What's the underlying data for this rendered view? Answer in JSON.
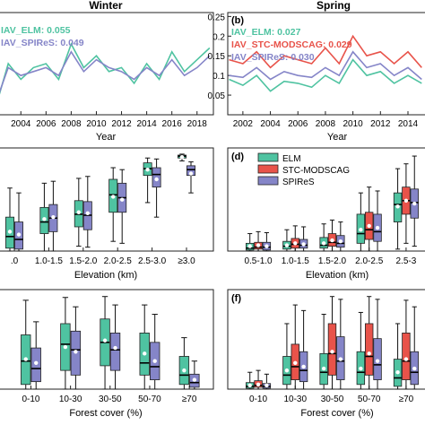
{
  "colors": {
    "ELM": "#4fc3a1",
    "STC-MODSCAG": "#e8534a",
    "SPIReS": "#8585c8",
    "frame": "#222222"
  },
  "chart_data": [
    {
      "id": "a",
      "type": "line",
      "title": "Winter",
      "panel_label": "",
      "xlabel": "Year",
      "x_ticks": [
        2004,
        2006,
        2008,
        2010,
        2012,
        2014,
        2016,
        2018
      ],
      "xlim": [
        2002.2,
        2019.3
      ],
      "ylim": [
        0,
        0.26
      ],
      "annotations": [
        {
          "text": "IAV_ELM: 0.055",
          "series": "ELM"
        },
        {
          "text": "IAV_SPIReS: 0.049",
          "series": "SPIReS"
        }
      ],
      "x": [
        2002,
        2003,
        2004,
        2005,
        2006,
        2007,
        2008,
        2009,
        2010,
        2011,
        2012,
        2013,
        2014,
        2015,
        2016,
        2017,
        2018,
        2019
      ],
      "series": [
        {
          "name": "ELM",
          "color_key": "ELM",
          "values": [
            0.02,
            0.13,
            0.09,
            0.12,
            0.13,
            0.09,
            0.18,
            0.12,
            0.15,
            0.11,
            0.12,
            0.08,
            0.13,
            0.09,
            0.16,
            0.11,
            0.14,
            0.17
          ]
        },
        {
          "name": "SPIReS",
          "color_key": "SPIReS",
          "values": [
            0.03,
            0.12,
            0.1,
            0.11,
            0.12,
            0.1,
            0.16,
            0.11,
            0.14,
            0.12,
            0.11,
            0.09,
            0.12,
            0.1,
            0.14,
            0.1,
            0.12,
            0.15
          ]
        }
      ]
    },
    {
      "id": "b",
      "type": "line",
      "title": "Spring",
      "panel_label": "(b)",
      "xlabel": "Year",
      "x_ticks": [
        2002,
        2004,
        2006,
        2008,
        2010,
        2012,
        2014
      ],
      "xlim": [
        2000.9,
        2015.5
      ],
      "ylim": [
        0,
        0.26
      ],
      "y_ticks": [
        0.05,
        0.1,
        0.15,
        0.2,
        0.25
      ],
      "annotations": [
        {
          "text": "IAV_ELM: 0.027",
          "series": "ELM"
        },
        {
          "text": "IAV_STC-MODSCAG: 0.029",
          "series": "STC-MODSCAG"
        },
        {
          "text": "IAV_SPIReS: 0.030",
          "series": "SPIReS"
        }
      ],
      "x": [
        2001,
        2002,
        2003,
        2004,
        2005,
        2006,
        2007,
        2008,
        2009,
        2010,
        2011,
        2012,
        2013,
        2014,
        2015
      ],
      "series": [
        {
          "name": "ELM",
          "color_key": "ELM",
          "values": [
            0.09,
            0.075,
            0.1,
            0.06,
            0.085,
            0.08,
            0.07,
            0.1,
            0.08,
            0.14,
            0.1,
            0.11,
            0.08,
            0.1,
            0.08
          ]
        },
        {
          "name": "STC-MODSCAG",
          "color_key": "STC-MODSCAG",
          "values": [
            0.14,
            0.13,
            0.16,
            0.12,
            0.15,
            0.14,
            0.13,
            0.17,
            0.13,
            0.2,
            0.15,
            0.16,
            0.13,
            0.16,
            0.12
          ]
        },
        {
          "name": "SPIReS",
          "color_key": "SPIReS",
          "values": [
            0.1,
            0.095,
            0.12,
            0.09,
            0.11,
            0.1,
            0.095,
            0.12,
            0.1,
            0.16,
            0.12,
            0.13,
            0.1,
            0.12,
            0.09
          ]
        }
      ]
    },
    {
      "id": "c",
      "type": "box",
      "panel_label": "",
      "xlabel": "Elevation (km)",
      "categories": [
        ".0",
        "1.0-1.5",
        "1.5-2.0",
        "2.0-2.5",
        "2.5-3.0",
        "≥3.0"
      ],
      "ylim": [
        0,
        1
      ],
      "series": [
        {
          "name": "ELM",
          "color_key": "ELM",
          "boxes": [
            {
              "wl": 0.0,
              "q1": 0.03,
              "med": 0.15,
              "q3": 0.35,
              "wh": 0.65,
              "mean": 0.2
            },
            {
              "wl": 0.0,
              "q1": 0.18,
              "med": 0.3,
              "q3": 0.45,
              "wh": 0.7,
              "mean": 0.33
            },
            {
              "wl": 0.05,
              "q1": 0.25,
              "med": 0.38,
              "q3": 0.52,
              "wh": 0.75,
              "mean": 0.4
            },
            {
              "wl": 0.1,
              "q1": 0.4,
              "med": 0.58,
              "q3": 0.74,
              "wh": 0.86,
              "mean": 0.56
            },
            {
              "wl": 0.5,
              "q1": 0.78,
              "med": 0.85,
              "q3": 0.91,
              "wh": 0.96,
              "mean": 0.84
            },
            {
              "wl": 0.93,
              "q1": 0.96,
              "med": 0.98,
              "q3": 0.99,
              "wh": 1.0,
              "mean": 0.97
            }
          ]
        },
        {
          "name": "SPIReS",
          "color_key": "SPIReS",
          "boxes": [
            {
              "wl": 0.0,
              "q1": 0.02,
              "med": 0.12,
              "q3": 0.3,
              "wh": 0.6,
              "mean": 0.17
            },
            {
              "wl": 0.0,
              "q1": 0.2,
              "med": 0.34,
              "q3": 0.48,
              "wh": 0.72,
              "mean": 0.35
            },
            {
              "wl": 0.04,
              "q1": 0.22,
              "med": 0.37,
              "q3": 0.51,
              "wh": 0.77,
              "mean": 0.39
            },
            {
              "wl": 0.08,
              "q1": 0.4,
              "med": 0.55,
              "q3": 0.7,
              "wh": 0.84,
              "mean": 0.53
            },
            {
              "wl": 0.35,
              "q1": 0.66,
              "med": 0.79,
              "q3": 0.86,
              "wh": 0.95,
              "mean": 0.74
            },
            {
              "wl": 0.6,
              "q1": 0.78,
              "med": 0.84,
              "q3": 0.88,
              "wh": 0.92,
              "mean": 0.8
            }
          ]
        }
      ]
    },
    {
      "id": "d",
      "type": "box",
      "panel_label": "(d)",
      "xlabel": "Elevation (km)",
      "categories": [
        "0.5-1.0",
        "1.0-1.5",
        "1.5-2.0",
        "2.0-2.5",
        "2.5-3"
      ],
      "ylim": [
        0,
        1
      ],
      "legend": [
        "ELM",
        "STC-MODSCAG",
        "SPIReS"
      ],
      "legend_loc": "top-left",
      "series": [
        {
          "name": "ELM",
          "color_key": "ELM",
          "boxes": [
            {
              "wl": 0.0,
              "q1": 0.01,
              "med": 0.03,
              "q3": 0.08,
              "wh": 0.18,
              "mean": 0.05
            },
            {
              "wl": 0.0,
              "q1": 0.02,
              "med": 0.05,
              "q3": 0.1,
              "wh": 0.22,
              "mean": 0.06
            },
            {
              "wl": 0.0,
              "q1": 0.03,
              "med": 0.06,
              "q3": 0.14,
              "wh": 0.28,
              "mean": 0.08
            },
            {
              "wl": 0.0,
              "q1": 0.08,
              "med": 0.18,
              "q3": 0.38,
              "wh": 0.6,
              "mean": 0.22
            },
            {
              "wl": 0.02,
              "q1": 0.3,
              "med": 0.48,
              "q3": 0.6,
              "wh": 0.85,
              "mean": 0.46
            }
          ]
        },
        {
          "name": "STC-MODSCAG",
          "color_key": "STC-MODSCAG",
          "boxes": [
            {
              "wl": 0.0,
              "q1": 0.02,
              "med": 0.04,
              "q3": 0.09,
              "wh": 0.2,
              "mean": 0.06
            },
            {
              "wl": 0.0,
              "q1": 0.03,
              "med": 0.07,
              "q3": 0.13,
              "wh": 0.26,
              "mean": 0.08
            },
            {
              "wl": 0.0,
              "q1": 0.05,
              "med": 0.09,
              "q3": 0.18,
              "wh": 0.32,
              "mean": 0.11
            },
            {
              "wl": 0.0,
              "q1": 0.12,
              "med": 0.22,
              "q3": 0.4,
              "wh": 0.66,
              "mean": 0.26
            },
            {
              "wl": 0.08,
              "q1": 0.38,
              "med": 0.52,
              "q3": 0.66,
              "wh": 0.9,
              "mean": 0.52
            }
          ]
        },
        {
          "name": "SPIReS",
          "color_key": "SPIReS",
          "boxes": [
            {
              "wl": 0.0,
              "q1": 0.01,
              "med": 0.04,
              "q3": 0.09,
              "wh": 0.19,
              "mean": 0.05
            },
            {
              "wl": 0.0,
              "q1": 0.03,
              "med": 0.06,
              "q3": 0.12,
              "wh": 0.25,
              "mean": 0.07
            },
            {
              "wl": 0.0,
              "q1": 0.04,
              "med": 0.08,
              "q3": 0.16,
              "wh": 0.3,
              "mean": 0.1
            },
            {
              "wl": 0.0,
              "q1": 0.1,
              "med": 0.2,
              "q3": 0.38,
              "wh": 0.62,
              "mean": 0.24
            },
            {
              "wl": 0.05,
              "q1": 0.34,
              "med": 0.5,
              "q3": 0.64,
              "wh": 0.98,
              "mean": 0.49
            }
          ]
        }
      ]
    },
    {
      "id": "e",
      "type": "box",
      "panel_label": "",
      "xlabel": "Forest cover (%)",
      "categories": [
        "0-10",
        "10-30",
        "30-50",
        "50-70",
        "≥70"
      ],
      "ylim": [
        0,
        1
      ],
      "series": [
        {
          "name": "ELM",
          "color_key": "ELM",
          "boxes": [
            {
              "wl": 0.0,
              "q1": 0.05,
              "med": 0.3,
              "q3": 0.58,
              "wh": 0.95,
              "mean": 0.32
            },
            {
              "wl": 0.0,
              "q1": 0.2,
              "med": 0.48,
              "q3": 0.7,
              "wh": 0.98,
              "mean": 0.45
            },
            {
              "wl": 0.0,
              "q1": 0.25,
              "med": 0.5,
              "q3": 0.75,
              "wh": 0.99,
              "mean": 0.52
            },
            {
              "wl": 0.0,
              "q1": 0.15,
              "med": 0.28,
              "q3": 0.6,
              "wh": 0.9,
              "mean": 0.38
            },
            {
              "wl": 0.0,
              "q1": 0.05,
              "med": 0.15,
              "q3": 0.35,
              "wh": 0.55,
              "mean": 0.2
            }
          ]
        },
        {
          "name": "SPIReS",
          "color_key": "SPIReS",
          "boxes": [
            {
              "wl": 0.0,
              "q1": 0.08,
              "med": 0.22,
              "q3": 0.44,
              "wh": 0.72,
              "mean": 0.28
            },
            {
              "wl": 0.0,
              "q1": 0.15,
              "med": 0.42,
              "q3": 0.62,
              "wh": 0.88,
              "mean": 0.4
            },
            {
              "wl": 0.0,
              "q1": 0.2,
              "med": 0.42,
              "q3": 0.6,
              "wh": 0.9,
              "mean": 0.44
            },
            {
              "wl": 0.0,
              "q1": 0.1,
              "med": 0.24,
              "q3": 0.5,
              "wh": 0.8,
              "mean": 0.3
            },
            {
              "wl": 0.0,
              "q1": 0.02,
              "med": 0.07,
              "q3": 0.16,
              "wh": 0.3,
              "mean": 0.1
            }
          ]
        }
      ]
    },
    {
      "id": "f",
      "type": "box",
      "panel_label": "(f)",
      "xlabel": "Forest cover (%)",
      "categories": [
        "0-10",
        "10-30",
        "30-50",
        "50-70",
        "≥70"
      ],
      "ylim": [
        0,
        1
      ],
      "series": [
        {
          "name": "ELM",
          "color_key": "ELM",
          "boxes": [
            {
              "wl": 0.0,
              "q1": 0.01,
              "med": 0.03,
              "q3": 0.07,
              "wh": 0.18,
              "mean": 0.04
            },
            {
              "wl": 0.0,
              "q1": 0.05,
              "med": 0.15,
              "q3": 0.35,
              "wh": 0.7,
              "mean": 0.2
            },
            {
              "wl": 0.0,
              "q1": 0.05,
              "med": 0.18,
              "q3": 0.38,
              "wh": 0.8,
              "mean": 0.22
            },
            {
              "wl": 0.0,
              "q1": 0.05,
              "med": 0.18,
              "q3": 0.4,
              "wh": 0.82,
              "mean": 0.22
            },
            {
              "wl": 0.0,
              "q1": 0.03,
              "med": 0.12,
              "q3": 0.32,
              "wh": 0.7,
              "mean": 0.18
            }
          ]
        },
        {
          "name": "STC-MODSCAG",
          "color_key": "STC-MODSCAG",
          "boxes": [
            {
              "wl": 0.0,
              "q1": 0.02,
              "med": 0.04,
              "q3": 0.09,
              "wh": 0.2,
              "mean": 0.05
            },
            {
              "wl": 0.0,
              "q1": 0.1,
              "med": 0.24,
              "q3": 0.48,
              "wh": 0.9,
              "mean": 0.28
            },
            {
              "wl": 0.0,
              "q1": 0.15,
              "med": 0.38,
              "q3": 0.7,
              "wh": 0.99,
              "mean": 0.4
            },
            {
              "wl": 0.0,
              "q1": 0.15,
              "med": 0.35,
              "q3": 0.7,
              "wh": 0.99,
              "mean": 0.38
            },
            {
              "wl": 0.0,
              "q1": 0.1,
              "med": 0.3,
              "q3": 0.6,
              "wh": 0.95,
              "mean": 0.32
            }
          ]
        },
        {
          "name": "SPIReS",
          "color_key": "SPIReS",
          "boxes": [
            {
              "wl": 0.0,
              "q1": 0.01,
              "med": 0.03,
              "q3": 0.06,
              "wh": 0.16,
              "mean": 0.04
            },
            {
              "wl": 0.0,
              "q1": 0.08,
              "med": 0.2,
              "q3": 0.4,
              "wh": 0.84,
              "mean": 0.24
            },
            {
              "wl": 0.0,
              "q1": 0.1,
              "med": 0.3,
              "q3": 0.56,
              "wh": 0.96,
              "mean": 0.32
            },
            {
              "wl": 0.0,
              "q1": 0.1,
              "med": 0.26,
              "q3": 0.54,
              "wh": 0.96,
              "mean": 0.3
            },
            {
              "wl": 0.0,
              "q1": 0.05,
              "med": 0.18,
              "q3": 0.4,
              "wh": 0.88,
              "mean": 0.22
            }
          ]
        }
      ]
    }
  ]
}
